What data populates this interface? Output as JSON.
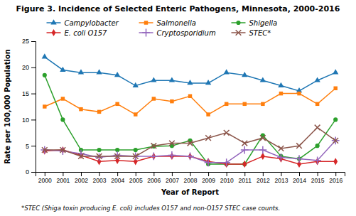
{
  "chart_data": {
    "type": "line",
    "title": "Figure 3. Incidence of Selected Enteric Pathogens, Minnesota, 2000-2016",
    "xlabel": "Year of Report",
    "ylabel": "Rate per 100,000 Population",
    "footnote": "*STEC (Shiga toxin producing E. coli) includes O157 and non-O157 STEC case counts.",
    "x": [
      2000,
      2001,
      2002,
      2003,
      2004,
      2005,
      2006,
      2007,
      2008,
      2009,
      2010,
      2011,
      2012,
      2013,
      2014,
      2015,
      2016
    ],
    "series": [
      {
        "name": "Campylobacter",
        "marker": "triangle",
        "values": [
          22.0,
          19.5,
          19.0,
          19.0,
          18.5,
          16.5,
          17.5,
          17.5,
          17.0,
          17.0,
          19.0,
          18.5,
          17.5,
          16.5,
          15.5,
          17.5,
          19.0
        ]
      },
      {
        "name": "Salmonella",
        "marker": "square",
        "values": [
          12.5,
          14.0,
          12.0,
          11.5,
          13.0,
          11.0,
          14.0,
          13.5,
          14.5,
          11.0,
          13.0,
          13.0,
          13.0,
          15.0,
          15.0,
          13.0,
          16.0
        ]
      },
      {
        "name": "Shigella",
        "marker": "circle",
        "values": [
          18.5,
          10.0,
          4.2,
          4.2,
          4.2,
          4.2,
          4.9,
          5.0,
          6.0,
          1.5,
          1.5,
          1.5,
          7.0,
          3.0,
          2.5,
          5.0,
          10.0
        ]
      },
      {
        "name": "E. coli O157",
        "marker": "diamond",
        "values": [
          4.0,
          4.2,
          3.2,
          2.0,
          2.2,
          2.0,
          3.0,
          3.0,
          3.0,
          2.0,
          1.5,
          1.5,
          3.0,
          2.5,
          1.5,
          2.0,
          2.0
        ]
      },
      {
        "name": "Cryptosporidium",
        "marker": "plus",
        "values": [
          4.2,
          4.0,
          3.5,
          2.8,
          3.2,
          3.0,
          3.0,
          3.2,
          3.0,
          1.8,
          1.8,
          4.2,
          4.2,
          2.8,
          2.5,
          2.2,
          6.0
        ]
      },
      {
        "name": "STEC*",
        "marker": "x",
        "values": [
          4.2,
          4.2,
          3.0,
          3.0,
          3.0,
          3.0,
          5.0,
          5.5,
          5.5,
          6.5,
          7.5,
          5.5,
          6.5,
          4.5,
          5.0,
          8.5,
          6.0
        ]
      }
    ],
    "xlim": [
      1999.5,
      2016.5
    ],
    "xticks": [
      2000,
      2001,
      2002,
      2003,
      2004,
      2005,
      2006,
      2007,
      2008,
      2009,
      2010,
      2011,
      2012,
      2013,
      2014,
      2015,
      2016
    ],
    "ylim": [
      0,
      25
    ],
    "yticks": [
      0,
      5,
      10,
      15,
      20,
      25
    ],
    "grid": false,
    "legend": "top"
  }
}
